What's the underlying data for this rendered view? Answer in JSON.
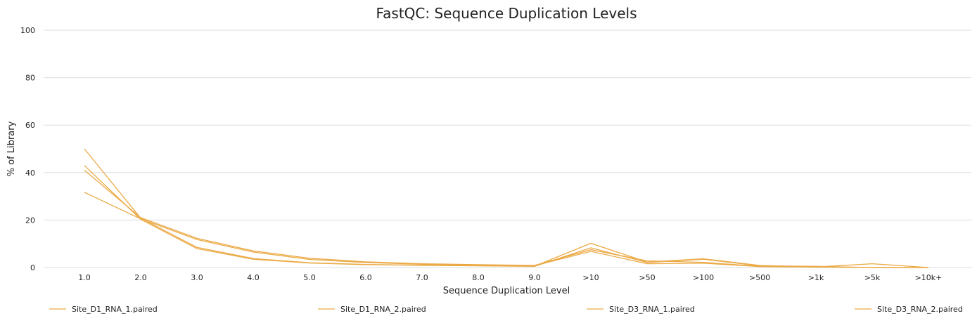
{
  "chart_data": {
    "type": "line",
    "title": "FastQC: Sequence Duplication Levels",
    "xlabel": "Sequence Duplication Level",
    "ylabel": "% of Library",
    "ylim": [
      0,
      100
    ],
    "yticks": [
      0,
      20,
      40,
      60,
      80,
      100
    ],
    "grid": true,
    "legend_position": "bottom",
    "categories": [
      "1.0",
      "2.0",
      "3.0",
      "4.0",
      "5.0",
      "6.0",
      "7.0",
      "8.0",
      "9.0",
      ">10",
      ">50",
      ">100",
      ">500",
      ">1k",
      ">5k",
      ">10k+"
    ],
    "series": [
      {
        "name": "Site_D1_RNA_1.paired",
        "color": "#ebaa46",
        "values": [
          50.0,
          20.8,
          8.5,
          3.8,
          2.0,
          1.3,
          1.0,
          0.8,
          0.6,
          10.2,
          2.3,
          3.7,
          0.9,
          0.2,
          1.6,
          0.0
        ]
      },
      {
        "name": "Site_D1_RNA_2.paired",
        "color": "#ebaa46",
        "values": [
          43.0,
          20.3,
          8.0,
          3.5,
          1.9,
          1.2,
          0.9,
          0.7,
          0.5,
          8.3,
          2.1,
          3.5,
          0.7,
          0.5,
          0.0,
          0.0
        ]
      },
      {
        "name": "Site_D3_RNA_1.paired",
        "color": "#ebaa46",
        "values": [
          41.0,
          21.0,
          12.3,
          7.0,
          3.9,
          2.4,
          1.6,
          1.2,
          0.9,
          7.5,
          2.8,
          2.2,
          0.5,
          0.3,
          0.0,
          0.0
        ]
      },
      {
        "name": "Site_D3_RNA_2.paired",
        "color": "#ebaa46",
        "values": [
          31.7,
          20.5,
          11.8,
          6.5,
          3.4,
          2.1,
          1.4,
          1.0,
          0.8,
          6.8,
          1.6,
          1.8,
          0.4,
          0.2,
          0.0,
          0.0
        ]
      }
    ]
  }
}
